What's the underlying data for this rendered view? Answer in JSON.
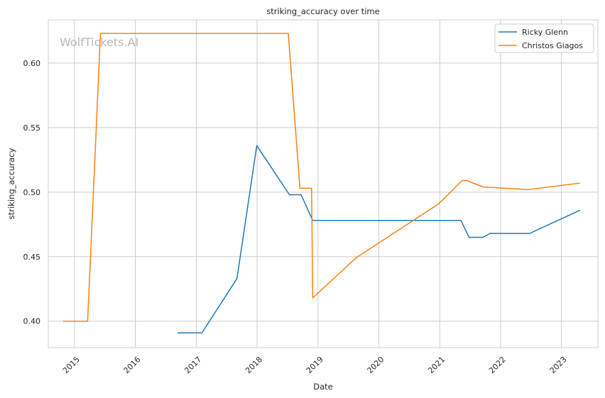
{
  "chart_data": {
    "type": "line",
    "title": "striking_accuracy over time",
    "xlabel": "Date",
    "ylabel": "striking_accuracy",
    "watermark": "WolfTickets.AI",
    "x_ticks": [
      "2015",
      "2016",
      "2017",
      "2018",
      "2019",
      "2020",
      "2021",
      "2022",
      "2023"
    ],
    "y_ticks": [
      "0.40",
      "0.45",
      "0.50",
      "0.55",
      "0.60"
    ],
    "xlim": [
      "2014-07-28",
      "2023-08-08"
    ],
    "ylim": [
      0.3795,
      0.6335
    ],
    "grid": true,
    "legend_position": "top-right",
    "series": [
      {
        "name": "Ricky Glenn",
        "color": "#1f77b4",
        "points": [
          [
            "2016-09-10",
            0.391
          ],
          [
            "2017-02-04",
            0.391
          ],
          [
            "2017-09-02",
            0.433
          ],
          [
            "2017-12-30",
            0.536
          ],
          [
            "2018-07-14",
            0.498
          ],
          [
            "2018-09-22",
            0.498
          ],
          [
            "2018-12-01",
            0.478
          ],
          [
            "2021-05-08",
            0.478
          ],
          [
            "2021-06-26",
            0.465
          ],
          [
            "2021-09-18",
            0.465
          ],
          [
            "2021-10-30",
            0.468
          ],
          [
            "2022-06-25",
            0.468
          ],
          [
            "2023-04-22",
            0.486
          ]
        ]
      },
      {
        "name": "Christos Giagos",
        "color": "#ff7f0e",
        "points": [
          [
            "2014-10-25",
            0.4
          ],
          [
            "2015-03-21",
            0.4
          ],
          [
            "2015-06-06",
            0.623
          ],
          [
            "2018-07-07",
            0.623
          ],
          [
            "2018-09-15",
            0.503
          ],
          [
            "2018-11-24",
            0.503
          ],
          [
            "2018-12-01",
            0.418
          ],
          [
            "2019-08-17",
            0.449
          ],
          [
            "2020-12-26",
            0.491
          ],
          [
            "2021-05-15",
            0.509
          ],
          [
            "2021-06-12",
            0.509
          ],
          [
            "2021-09-18",
            0.504
          ],
          [
            "2022-06-18",
            0.502
          ],
          [
            "2023-04-22",
            0.507
          ]
        ]
      }
    ]
  }
}
